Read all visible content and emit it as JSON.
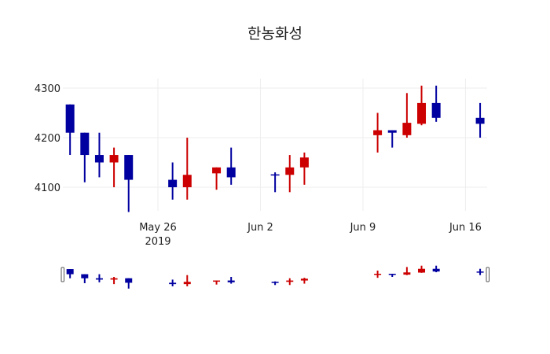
{
  "chart_data": {
    "type": "candlestick",
    "title": "한농화성",
    "xlabel": "",
    "ylabel": "",
    "ylim": [
      4050,
      4320
    ],
    "y_ticks": [
      4100,
      4200,
      4300
    ],
    "x_ticks": [
      {
        "label": "May 26",
        "sub": "2019",
        "day": 0
      },
      {
        "label": "Jun 2",
        "sub": "",
        "day": 7
      },
      {
        "label": "Jun 9",
        "sub": "",
        "day": 14
      },
      {
        "label": "Jun 16",
        "sub": "",
        "day": 21
      }
    ],
    "grid": true,
    "rangeslider": true,
    "increasing_color": "#CC0000",
    "decreasing_color": "#0000A0",
    "candles": [
      {
        "date": "2019-05-20",
        "day": -6,
        "open": 4267,
        "high": 4267,
        "low": 4165,
        "close": 4210
      },
      {
        "date": "2019-05-21",
        "day": -5,
        "open": 4210,
        "high": 4210,
        "low": 4110,
        "close": 4165
      },
      {
        "date": "2019-05-22",
        "day": -4,
        "open": 4165,
        "high": 4210,
        "low": 4120,
        "close": 4150
      },
      {
        "date": "2019-05-23",
        "day": -3,
        "open": 4150,
        "high": 4180,
        "low": 4100,
        "close": 4165
      },
      {
        "date": "2019-05-24",
        "day": -2,
        "open": 4165,
        "high": 4165,
        "low": 4050,
        "close": 4115
      },
      {
        "date": "2019-05-27",
        "day": 1,
        "open": 4115,
        "high": 4150,
        "low": 4075,
        "close": 4100
      },
      {
        "date": "2019-05-28",
        "day": 2,
        "open": 4100,
        "high": 4200,
        "low": 4075,
        "close": 4125
      },
      {
        "date": "2019-05-30",
        "day": 4,
        "open": 4128,
        "high": 4140,
        "low": 4095,
        "close": 4140
      },
      {
        "date": "2019-05-31",
        "day": 5,
        "open": 4140,
        "high": 4180,
        "low": 4105,
        "close": 4120
      },
      {
        "date": "2019-06-03",
        "day": 8,
        "open": 4126,
        "high": 4130,
        "low": 4090,
        "close": 4124
      },
      {
        "date": "2019-06-04",
        "day": 9,
        "open": 4125,
        "high": 4165,
        "low": 4090,
        "close": 4140
      },
      {
        "date": "2019-06-05",
        "day": 10,
        "open": 4140,
        "high": 4170,
        "low": 4105,
        "close": 4160
      },
      {
        "date": "2019-06-10",
        "day": 15,
        "open": 4205,
        "high": 4250,
        "low": 4170,
        "close": 4215
      },
      {
        "date": "2019-06-11",
        "day": 16,
        "open": 4215,
        "high": 4215,
        "low": 4180,
        "close": 4210
      },
      {
        "date": "2019-06-12",
        "day": 17,
        "open": 4205,
        "high": 4290,
        "low": 4200,
        "close": 4230
      },
      {
        "date": "2019-06-13",
        "day": 18,
        "open": 4228,
        "high": 4305,
        "low": 4225,
        "close": 4270
      },
      {
        "date": "2019-06-14",
        "day": 19,
        "open": 4270,
        "high": 4305,
        "low": 4232,
        "close": 4240
      },
      {
        "date": "2019-06-17",
        "day": 22,
        "open": 4240,
        "high": 4270,
        "low": 4200,
        "close": 4228
      }
    ]
  }
}
